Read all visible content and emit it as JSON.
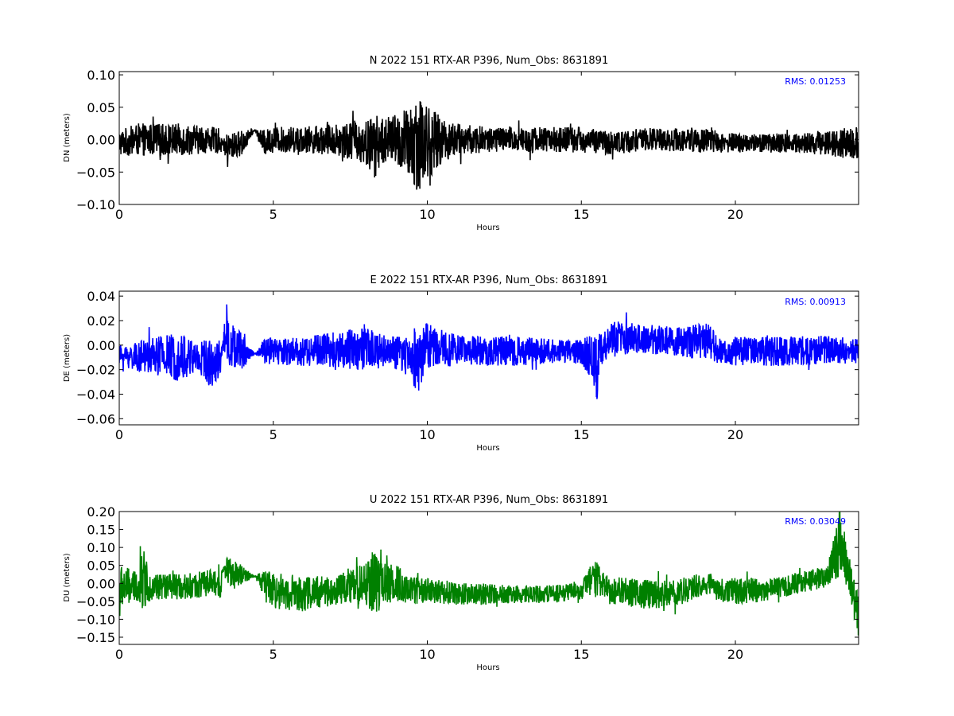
{
  "chart_data": [
    {
      "type": "line",
      "title": "N 2022 151 RTX-AR  P396, Num_Obs: 8631891",
      "xlabel": "Hours",
      "ylabel": "DN (meters)",
      "xlim": [
        0,
        24
      ],
      "ylim": [
        -0.1,
        0.105
      ],
      "xticks": [
        "0",
        "5",
        "10",
        "15",
        "20"
      ],
      "yticks": [
        "0.10",
        "0.05",
        "0.00",
        "−0.05",
        "−0.10"
      ],
      "annotation": "RMS:  0.01253",
      "color": "#000000",
      "series": [
        {
          "x": [
            0.0,
            0.6,
            1.0,
            2.0,
            3.0,
            3.3,
            3.35,
            3.5,
            3.6,
            4.0,
            4.4,
            4.7,
            5.0,
            6.0,
            7.0,
            7.5,
            8.0,
            8.3,
            8.6,
            9.0,
            9.4,
            9.7,
            10.0,
            10.5,
            11.0,
            12.0,
            13.0,
            14.0,
            15.0,
            16.0,
            17.0,
            18.0,
            19.0,
            19.3,
            19.4,
            20.0,
            21.0,
            22.0,
            23.0,
            24.0
          ],
          "amp": [
            0.02,
            0.025,
            0.025,
            0.025,
            0.02,
            0.02,
            0.0,
            0.03,
            0.02,
            0.02,
            0.0,
            0.02,
            0.02,
            0.02,
            0.025,
            0.03,
            0.035,
            0.05,
            0.035,
            0.04,
            0.06,
            0.08,
            0.06,
            0.035,
            0.025,
            0.02,
            0.02,
            0.02,
            0.02,
            0.018,
            0.018,
            0.018,
            0.02,
            0.02,
            0.015,
            0.015,
            0.015,
            0.015,
            0.02,
            0.025
          ],
          "mean": [
            -0.005,
            0.0,
            0.0,
            0.0,
            0.0,
            -0.003,
            -0.003,
            -0.02,
            -0.01,
            -0.005,
            0.015,
            -0.005,
            0.0,
            0.0,
            0.0,
            0.0,
            -0.005,
            -0.01,
            0.0,
            0.0,
            -0.01,
            0.0,
            -0.005,
            0.0,
            0.0,
            0.0,
            0.0,
            0.0,
            0.0,
            -0.005,
            0.0,
            0.0,
            0.0,
            0.0,
            -0.005,
            -0.005,
            -0.005,
            -0.005,
            -0.005,
            -0.005
          ]
        }
      ]
    },
    {
      "type": "line",
      "title": "E 2022 151 RTX-AR  P396, Num_Obs: 8631891",
      "xlabel": "Hours",
      "ylabel": "DE (meters)",
      "xlim": [
        0,
        24
      ],
      "ylim": [
        -0.065,
        0.044
      ],
      "xticks": [
        "0",
        "5",
        "10",
        "15",
        "20"
      ],
      "yticks": [
        "0.04",
        "0.02",
        "0.00",
        "−0.02",
        "−0.04",
        "−0.06"
      ],
      "annotation": "RMS:  0.00913",
      "color": "#0000ff",
      "series": [
        {
          "x": [
            0.0,
            0.6,
            1.0,
            2.0,
            2.5,
            3.0,
            3.3,
            3.35,
            3.5,
            3.6,
            4.0,
            4.4,
            4.7,
            5.0,
            6.0,
            7.0,
            8.0,
            8.8,
            9.5,
            9.7,
            10.0,
            10.5,
            11.0,
            12.0,
            13.0,
            14.0,
            15.0,
            15.4,
            15.5,
            15.6,
            16.0,
            17.0,
            18.0,
            19.0,
            19.3,
            19.4,
            20.0,
            21.0,
            22.0,
            23.0,
            24.0
          ],
          "amp": [
            0.008,
            0.012,
            0.015,
            0.02,
            0.015,
            0.02,
            0.015,
            0.0,
            0.03,
            0.02,
            0.015,
            0.0,
            0.01,
            0.012,
            0.012,
            0.015,
            0.018,
            0.012,
            0.02,
            0.03,
            0.02,
            0.015,
            0.012,
            0.012,
            0.012,
            0.01,
            0.01,
            0.02,
            0.04,
            0.015,
            0.015,
            0.012,
            0.012,
            0.015,
            0.015,
            0.01,
            0.012,
            0.012,
            0.012,
            0.012,
            0.01
          ],
          "mean": [
            -0.008,
            -0.01,
            -0.008,
            -0.01,
            -0.01,
            -0.015,
            -0.01,
            0.0,
            0.01,
            0.0,
            -0.005,
            -0.007,
            -0.005,
            -0.005,
            -0.005,
            -0.003,
            -0.003,
            -0.005,
            -0.01,
            -0.01,
            0.0,
            -0.003,
            -0.003,
            -0.005,
            -0.005,
            -0.005,
            -0.005,
            -0.01,
            -0.025,
            -0.005,
            0.005,
            0.005,
            0.003,
            0.003,
            0.0,
            -0.005,
            -0.005,
            -0.005,
            -0.005,
            -0.003,
            -0.005
          ]
        }
      ]
    },
    {
      "type": "line",
      "title": "U 2022 151 RTX-AR  P396, Num_Obs: 8631891",
      "xlabel": "Hours",
      "ylabel": "DU (meters)",
      "xlim": [
        0,
        24
      ],
      "ylim": [
        -0.17,
        0.2
      ],
      "xticks": [
        "0",
        "5",
        "10",
        "15",
        "20"
      ],
      "yticks": [
        "0.20",
        "0.15",
        "0.10",
        "0.05",
        "0.00",
        "−0.05",
        "−0.10",
        "−0.15"
      ],
      "annotation": "RMS:  0.03049",
      "color": "#008000",
      "series": [
        {
          "x": [
            0.0,
            0.1,
            0.6,
            0.7,
            1.0,
            2.0,
            3.0,
            3.3,
            3.35,
            3.5,
            3.6,
            4.0,
            4.4,
            4.7,
            5.0,
            6.0,
            7.0,
            8.0,
            8.2,
            8.5,
            9.0,
            9.5,
            10.0,
            11.0,
            12.0,
            13.0,
            14.0,
            15.0,
            15.5,
            15.6,
            16.0,
            17.0,
            18.0,
            19.0,
            19.3,
            19.4,
            20.0,
            21.0,
            22.0,
            23.0,
            23.4,
            23.7,
            24.0
          ],
          "amp": [
            0.08,
            0.06,
            0.04,
            0.1,
            0.04,
            0.035,
            0.04,
            0.04,
            0.0,
            0.04,
            0.04,
            0.03,
            0.0,
            0.04,
            0.05,
            0.05,
            0.04,
            0.06,
            0.1,
            0.06,
            0.05,
            0.04,
            0.035,
            0.03,
            0.03,
            0.025,
            0.025,
            0.025,
            0.06,
            0.04,
            0.04,
            0.04,
            0.04,
            0.03,
            0.03,
            0.03,
            0.04,
            0.03,
            0.03,
            0.03,
            0.1,
            0.05,
            0.07
          ],
          "mean": [
            -0.03,
            -0.01,
            -0.01,
            0.02,
            -0.01,
            -0.01,
            0.0,
            0.0,
            0.035,
            0.04,
            0.03,
            0.02,
            0.02,
            0.0,
            -0.02,
            -0.03,
            -0.02,
            0.0,
            0.0,
            0.0,
            0.0,
            -0.02,
            -0.02,
            -0.03,
            -0.03,
            -0.03,
            -0.03,
            -0.02,
            0.02,
            0.0,
            -0.02,
            -0.03,
            -0.03,
            0.0,
            0.0,
            -0.02,
            -0.02,
            -0.02,
            0.0,
            0.02,
            0.12,
            0.03,
            -0.1
          ]
        }
      ]
    }
  ]
}
